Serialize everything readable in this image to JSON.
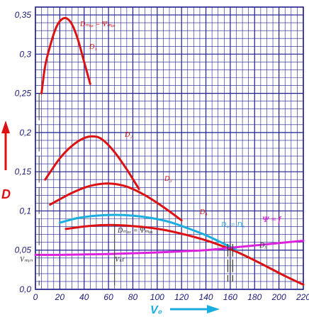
{
  "chart_data": {
    "type": "line",
    "title": "",
    "xlabel": "V₀",
    "ylabel": "D",
    "xlim": [
      0,
      220
    ],
    "ylim": [
      0,
      0.36
    ],
    "x_ticks": [
      0,
      20,
      40,
      60,
      80,
      100,
      120,
      140,
      160,
      180,
      200,
      220
    ],
    "y_ticks": [
      0,
      0.05,
      0.1,
      0.15,
      0.2,
      0.25,
      0.3,
      0.35
    ],
    "x_tick_labels": [
      "0",
      "20",
      "40",
      "60",
      "80",
      "100",
      "120",
      "140",
      "160",
      "180",
      "200",
      "220"
    ],
    "y_tick_labels": [
      "0,0",
      "0,05",
      "0,1",
      "0,15",
      "0,2",
      "0,25",
      "0,3",
      "0,35"
    ],
    "grid": true,
    "colors": {
      "grid": "#1e1e8c",
      "red": "#dd1111",
      "cyan": "#1aaee0",
      "magenta": "#dd22dd",
      "text": "#1b1b7a",
      "dark": "#333333"
    },
    "series": [
      {
        "name": "D₁",
        "color": "#dd1111",
        "x": [
          5,
          8,
          12,
          16,
          20,
          25,
          30,
          35,
          40,
          45
        ],
        "y": [
          0.25,
          0.285,
          0.31,
          0.33,
          0.342,
          0.346,
          0.338,
          0.318,
          0.29,
          0.262
        ]
      },
      {
        "name": "D₂",
        "color": "#dd1111",
        "x": [
          8,
          20,
          30,
          40,
          48,
          55,
          65,
          75,
          85
        ],
        "y": [
          0.14,
          0.167,
          0.183,
          0.193,
          0.195,
          0.191,
          0.175,
          0.153,
          0.128
        ]
      },
      {
        "name": "D₃",
        "color": "#dd1111",
        "x": [
          12,
          30,
          45,
          60,
          75,
          90,
          105,
          120
        ],
        "y": [
          0.108,
          0.123,
          0.132,
          0.135,
          0.131,
          0.12,
          0.105,
          0.088
        ]
      },
      {
        "name": "D₄",
        "color": "#1aaee0",
        "x": [
          20,
          35,
          50,
          65,
          80,
          95,
          110,
          125,
          140,
          155,
          165
        ],
        "y": [
          0.085,
          0.091,
          0.094,
          0.095,
          0.094,
          0.091,
          0.086,
          0.078,
          0.069,
          0.058,
          0.05
        ]
      },
      {
        "name": "D₅",
        "color": "#dd1111",
        "x": [
          25,
          45,
          65,
          85,
          105,
          125,
          145,
          165,
          185,
          205,
          220
        ],
        "y": [
          0.077,
          0.081,
          0.082,
          0.08,
          0.076,
          0.069,
          0.06,
          0.048,
          0.033,
          0.017,
          0.006
        ]
      },
      {
        "name": "Ψ = f",
        "color": "#dd22dd",
        "x": [
          0,
          20,
          40,
          60,
          80,
          100,
          120,
          140,
          160,
          180,
          200,
          220
        ],
        "y": [
          0.044,
          0.044,
          0.0445,
          0.045,
          0.046,
          0.047,
          0.0485,
          0.05,
          0.053,
          0.056,
          0.059,
          0.062
        ]
      }
    ],
    "annotations": {
      "dmax_top": "Dₘₐₓ = Ψₘₐₓ",
      "dmax_bottom": "Dₘₐₓ = Ψₘₐₓ",
      "d1_label": "D₁",
      "d2_label": "D₂",
      "d3_label": "D₃",
      "d4_label": "D₄",
      "d5_label": "D₅",
      "psi_label": "Ψ = f",
      "intersection": "D₄ = D₅",
      "vmin": "Vₘᵢₙ",
      "vkr": "Vₖґ"
    }
  }
}
